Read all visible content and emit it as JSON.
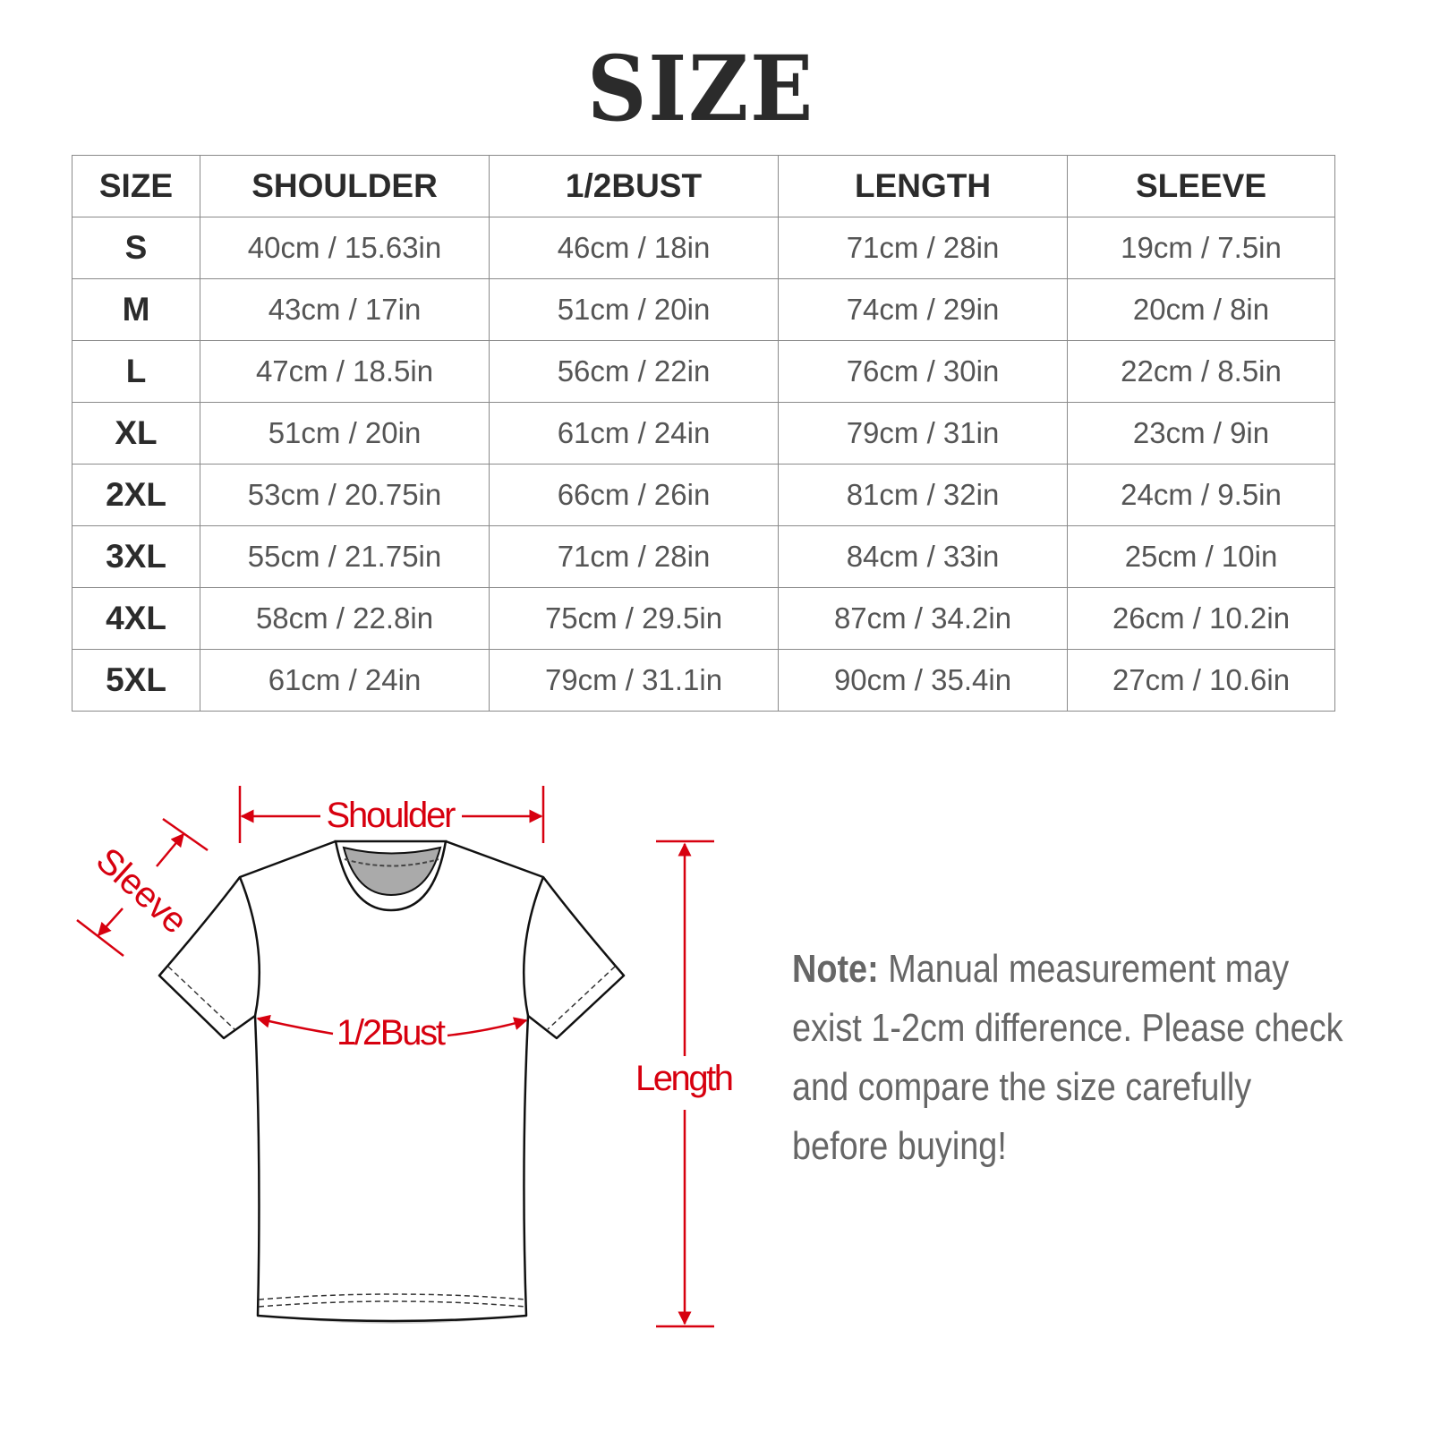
{
  "title": "SIZE",
  "table": {
    "headers": [
      "SIZE",
      "SHOULDER",
      "1/2BUST",
      "LENGTH",
      "SLEEVE"
    ],
    "rows": [
      [
        "S",
        "40cm / 15.63in",
        "46cm / 18in",
        "71cm / 28in",
        "19cm / 7.5in"
      ],
      [
        "M",
        "43cm / 17in",
        "51cm / 20in",
        "74cm / 29in",
        "20cm / 8in"
      ],
      [
        "L",
        "47cm / 18.5in",
        "56cm / 22in",
        "76cm / 30in",
        "22cm / 8.5in"
      ],
      [
        "XL",
        "51cm / 20in",
        "61cm / 24in",
        "79cm / 31in",
        "23cm / 9in"
      ],
      [
        "2XL",
        "53cm / 20.75in",
        "66cm / 26in",
        "81cm / 32in",
        "24cm / 9.5in"
      ],
      [
        "3XL",
        "55cm / 21.75in",
        "71cm / 28in",
        "84cm / 33in",
        "25cm / 10in"
      ],
      [
        "4XL",
        "58cm / 22.8in",
        "75cm / 29.5in",
        "87cm / 34.2in",
        "26cm / 10.2in"
      ],
      [
        "5XL",
        "61cm / 24in",
        "79cm / 31.1in",
        "90cm / 35.4in",
        "27cm / 10.6in"
      ]
    ]
  },
  "diagram": {
    "labels": {
      "shoulder": "Shoulder",
      "sleeve": "Sleeve",
      "bust": "1/2Bust",
      "length": "Length"
    },
    "accent_color": "#d7000f"
  },
  "note": {
    "label": "Note:",
    "text": "Manual measurement may exist 1-2cm difference. Please check and compare the size carefully before buying!"
  }
}
